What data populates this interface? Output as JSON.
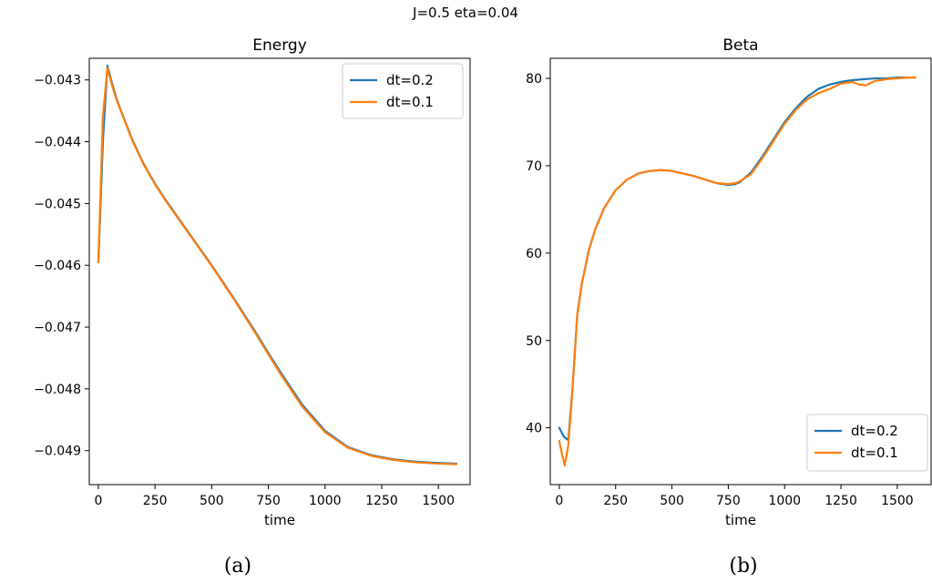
{
  "figure": {
    "suptitle": "J=0.5 eta=0.04"
  },
  "chart_data": [
    {
      "type": "line",
      "title": "Energy",
      "xlabel": "time",
      "ylabel": "",
      "caption": "(a)",
      "xlim": [
        -40,
        1640
      ],
      "ylim": [
        -0.04955,
        -0.04265
      ],
      "xticks": [
        0,
        250,
        500,
        750,
        1000,
        1250,
        1500
      ],
      "xtick_labels": [
        "0",
        "250",
        "500",
        "750",
        "1000",
        "1250",
        "1500"
      ],
      "yticks": [
        -0.049,
        -0.048,
        -0.047,
        -0.046,
        -0.045,
        -0.044,
        -0.043
      ],
      "ytick_labels": [
        "−0.049",
        "−0.048",
        "−0.047",
        "−0.046",
        "−0.045",
        "−0.044",
        "−0.043"
      ],
      "legend_position": "top-right",
      "grid": false,
      "series": [
        {
          "name": "dt=0.2",
          "color": "#1f77b4",
          "x": [
            0,
            20,
            40,
            60,
            80,
            100,
            150,
            200,
            250,
            300,
            400,
            500,
            600,
            700,
            750,
            800,
            900,
            1000,
            1100,
            1200,
            1300,
            1400,
            1500,
            1580
          ],
          "y": [
            -0.04595,
            -0.044,
            -0.04277,
            -0.04305,
            -0.0433,
            -0.0435,
            -0.04397,
            -0.04436,
            -0.04468,
            -0.04496,
            -0.04548,
            -0.046,
            -0.04655,
            -0.04712,
            -0.04742,
            -0.04771,
            -0.04826,
            -0.04868,
            -0.04894,
            -0.04907,
            -0.04914,
            -0.04918,
            -0.0492,
            -0.04921
          ]
        },
        {
          "name": "dt=0.1",
          "color": "#ff7f0e",
          "x": [
            0,
            20,
            40,
            60,
            80,
            100,
            150,
            200,
            250,
            300,
            400,
            500,
            600,
            700,
            750,
            800,
            900,
            1000,
            1100,
            1200,
            1300,
            1400,
            1500,
            1580
          ],
          "y": [
            -0.04595,
            -0.0436,
            -0.0428,
            -0.04308,
            -0.04332,
            -0.04351,
            -0.04398,
            -0.04437,
            -0.04469,
            -0.04497,
            -0.04549,
            -0.04601,
            -0.04656,
            -0.04714,
            -0.04744,
            -0.04774,
            -0.04829,
            -0.0487,
            -0.04895,
            -0.04908,
            -0.04915,
            -0.04919,
            -0.04921,
            -0.04922
          ]
        }
      ]
    },
    {
      "type": "line",
      "title": "Beta",
      "xlabel": "time",
      "ylabel": "",
      "caption": "(b)",
      "xlim": [
        -40,
        1650
      ],
      "ylim": [
        33.5,
        82.3
      ],
      "xticks": [
        0,
        250,
        500,
        750,
        1000,
        1250,
        1500
      ],
      "xtick_labels": [
        "0",
        "250",
        "500",
        "750",
        "1000",
        "1250",
        "1500"
      ],
      "yticks": [
        40,
        50,
        60,
        70,
        80
      ],
      "ytick_labels": [
        "40",
        "50",
        "60",
        "70",
        "80"
      ],
      "legend_position": "bottom-right",
      "grid": false,
      "series": [
        {
          "name": "dt=0.2",
          "color": "#1f77b4",
          "x": [
            0,
            20,
            40,
            60,
            80,
            100,
            130,
            160,
            200,
            250,
            300,
            350,
            400,
            450,
            500,
            550,
            600,
            650,
            700,
            750,
            780,
            800,
            850,
            900,
            950,
            1000,
            1050,
            1100,
            1150,
            1200,
            1250,
            1300,
            1350,
            1400,
            1450,
            1500,
            1550,
            1580
          ],
          "y": [
            40.0,
            39.0,
            38.6,
            45.0,
            53.0,
            56.5,
            60.2,
            62.8,
            65.2,
            67.2,
            68.4,
            69.1,
            69.4,
            69.5,
            69.4,
            69.1,
            68.8,
            68.4,
            68.0,
            67.8,
            67.9,
            68.1,
            69.2,
            71.0,
            73.0,
            75.0,
            76.6,
            77.9,
            78.8,
            79.3,
            79.6,
            79.8,
            79.9,
            80.0,
            80.0,
            80.1,
            80.1,
            80.1
          ]
        },
        {
          "name": "dt=0.1",
          "color": "#ff7f0e",
          "x": [
            0,
            12,
            24,
            40,
            60,
            80,
            100,
            130,
            160,
            200,
            250,
            300,
            350,
            400,
            450,
            500,
            550,
            600,
            650,
            700,
            750,
            780,
            800,
            850,
            900,
            950,
            1000,
            1050,
            1100,
            1150,
            1200,
            1250,
            1300,
            1330,
            1360,
            1400,
            1450,
            1500,
            1550,
            1580
          ],
          "y": [
            38.5,
            37.0,
            35.7,
            38.0,
            45.0,
            53.0,
            56.5,
            60.2,
            62.8,
            65.2,
            67.2,
            68.4,
            69.1,
            69.4,
            69.5,
            69.4,
            69.1,
            68.8,
            68.4,
            68.0,
            67.9,
            68.0,
            68.2,
            69.0,
            70.8,
            72.8,
            74.8,
            76.4,
            77.6,
            78.3,
            78.8,
            79.4,
            79.6,
            79.3,
            79.2,
            79.7,
            79.9,
            80.0,
            80.1,
            80.1
          ]
        }
      ]
    }
  ]
}
